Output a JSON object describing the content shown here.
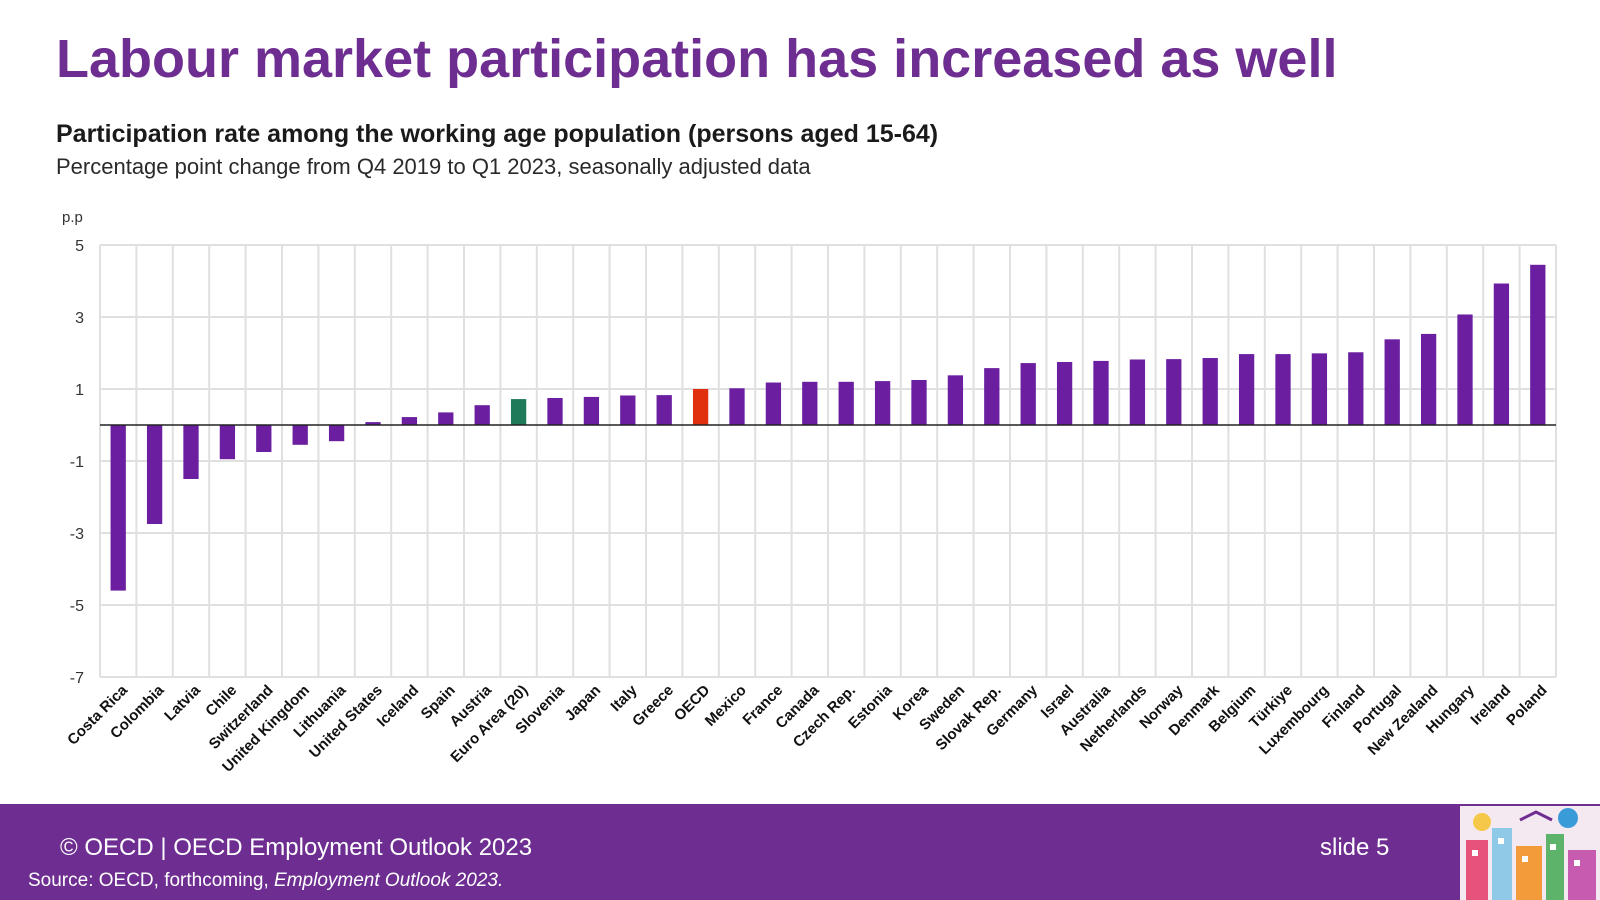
{
  "slide": {
    "title": "Labour market participation has increased as well",
    "number": "slide 5"
  },
  "footer": {
    "credit": "© OECD | OECD Employment Outlook 2023",
    "source_prefix": "Source: OECD, forthcoming, ",
    "source_publication": "Employment Outlook 2023."
  },
  "colors": {
    "brand_purple": "#6e2d91",
    "bar": "#6b1fa0",
    "euro_area": "#1f7a5a",
    "oecd": "#e03010",
    "grid": "#e0e0e0"
  },
  "chart_data": {
    "type": "bar",
    "title": "Participation rate among the working age population (persons aged 15-64)",
    "subtitle": "Percentage point change from Q4 2019 to Q1 2023, seasonally adjusted data",
    "ylabel": "p.p",
    "ylim": [
      -7,
      5
    ],
    "yticks": [
      5,
      3,
      1,
      -1,
      -3,
      -5,
      -7
    ],
    "grid": true,
    "categories": [
      "Costa Rica",
      "Colombia",
      "Latvia",
      "Chile",
      "Switzerland",
      "United Kingdom",
      "Lithuania",
      "United States",
      "Iceland",
      "Spain",
      "Austria",
      "Euro Area (20)",
      "Slovenia",
      "Japan",
      "Italy",
      "Greece",
      "OECD",
      "Mexico",
      "France",
      "Canada",
      "Czech Rep.",
      "Estonia",
      "Korea",
      "Sweden",
      "Slovak Rep.",
      "Germany",
      "Israel",
      "Australia",
      "Netherlands",
      "Norway",
      "Denmark",
      "Belgium",
      "Türkiye",
      "Luxembourg",
      "Finland",
      "Portugal",
      "New Zealand",
      "Hungary",
      "Ireland",
      "Poland"
    ],
    "values": [
      -4.6,
      -2.75,
      -1.5,
      -0.95,
      -0.75,
      -0.55,
      -0.45,
      0.08,
      0.22,
      0.35,
      0.55,
      0.72,
      0.75,
      0.78,
      0.82,
      0.83,
      1.0,
      1.02,
      1.18,
      1.2,
      1.2,
      1.22,
      1.25,
      1.38,
      1.58,
      1.72,
      1.75,
      1.78,
      1.82,
      1.83,
      1.86,
      1.97,
      1.97,
      1.99,
      2.02,
      2.38,
      2.53,
      3.07,
      3.93,
      4.45
    ],
    "highlight": {
      "Euro Area (20)": "euro_area",
      "OECD": "oecd"
    }
  }
}
